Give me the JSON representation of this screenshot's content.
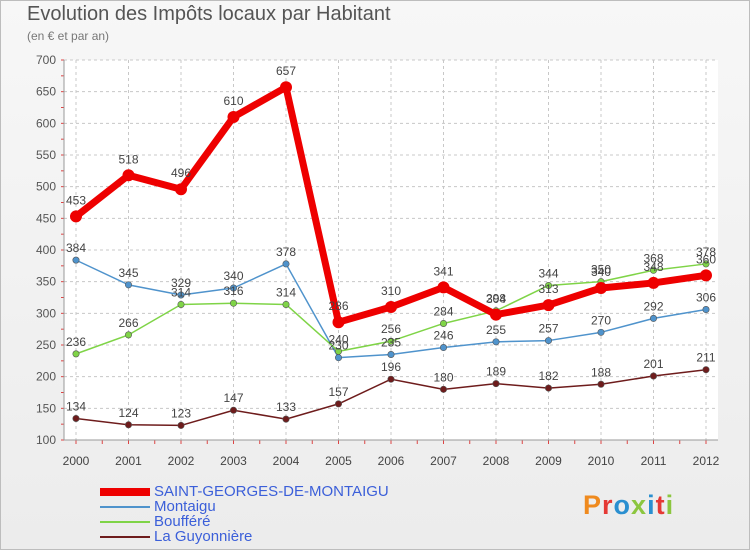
{
  "chart_data": {
    "type": "line",
    "title": "Evolution des Impôts locaux par Habitant",
    "subtitle": "(en € et par an)",
    "xlabel": "",
    "ylabel": "",
    "ylim": [
      100,
      700
    ],
    "yticks": [
      100,
      150,
      200,
      250,
      300,
      350,
      400,
      450,
      500,
      550,
      600,
      650,
      700
    ],
    "categories": [
      "2000",
      "2001",
      "2002",
      "2003",
      "2004",
      "2005",
      "2006",
      "2007",
      "2008",
      "2009",
      "2010",
      "2011",
      "2012"
    ],
    "grid": true,
    "legend_position": "bottom-left",
    "series": [
      {
        "name": "SAINT-GEORGES-DE-MONTAIGU",
        "color": "#ee0000",
        "values": [
          453,
          518,
          496,
          610,
          657,
          286,
          310,
          341,
          298,
          313,
          340,
          348,
          360
        ]
      },
      {
        "name": "Montaigu",
        "color": "#4f93cc",
        "values": [
          384,
          345,
          329,
          340,
          378,
          230,
          235,
          246,
          255,
          257,
          270,
          292,
          306
        ]
      },
      {
        "name": "Boufféré",
        "color": "#7fd447",
        "values": [
          236,
          266,
          314,
          316,
          314,
          240,
          256,
          284,
          304,
          344,
          350,
          368,
          378
        ]
      },
      {
        "name": "La Guyonnière",
        "color": "#6e1c1c",
        "values": [
          134,
          124,
          123,
          147,
          133,
          157,
          196,
          180,
          189,
          182,
          188,
          201,
          211
        ]
      }
    ]
  },
  "legend": {
    "text_colors": [
      "#3b5fd9",
      "#3b5fd9",
      "#3b5fd9",
      "#3b5fd9"
    ]
  },
  "logo": {
    "text": "Proxiti"
  }
}
